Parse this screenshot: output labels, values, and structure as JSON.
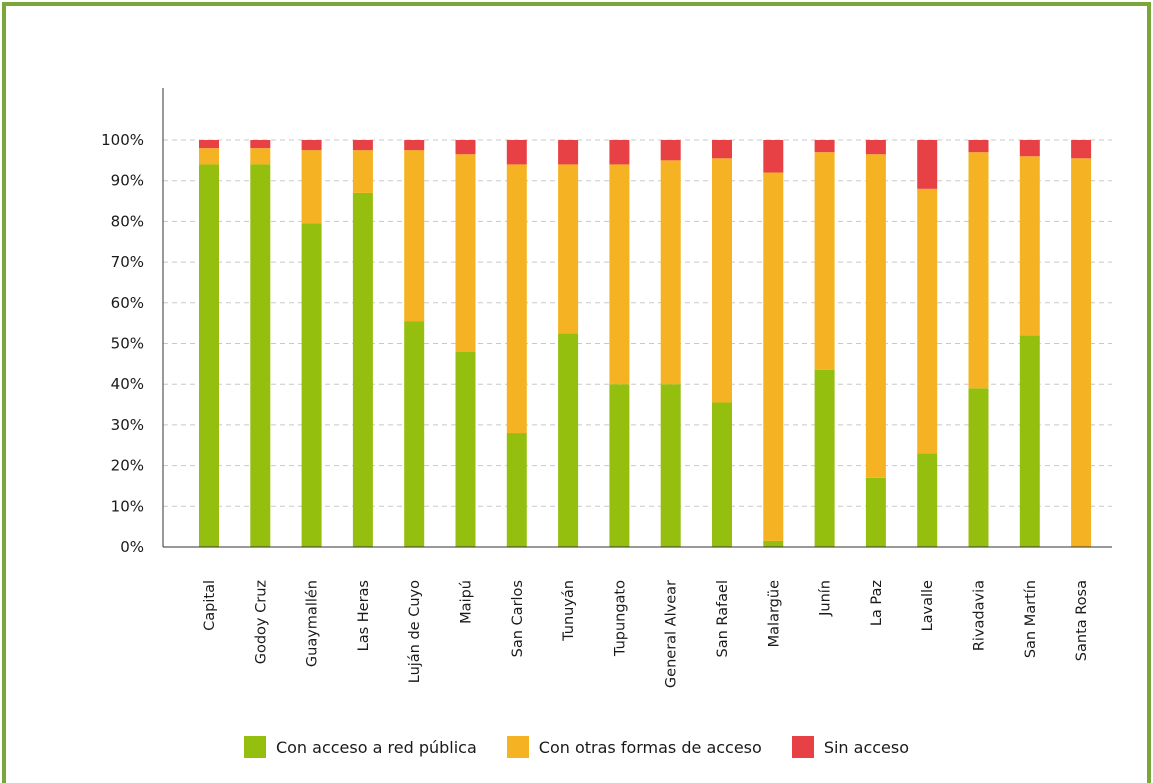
{
  "colors": {
    "frame": "#7ba63a",
    "grid": "#c8c8c8",
    "axis": "#333333",
    "public": "#95bf0e",
    "other": "#f5b323",
    "none": "#e84145"
  },
  "chart_data": {
    "type": "bar",
    "stacked": true,
    "percent": true,
    "ylim": [
      0,
      100
    ],
    "yticks": [
      "0%",
      "10%",
      "20%",
      "30%",
      "40%",
      "50%",
      "60%",
      "70%",
      "80%",
      "90%",
      "100%"
    ],
    "grid": true,
    "legend_position": "bottom",
    "categories": [
      "Capital",
      "Godoy Cruz",
      "Guaymallén",
      "Las Heras",
      "Luján de Cuyo",
      "Maipú",
      "San Carlos",
      "Tunuyán",
      "Tupungato",
      "General Alvear",
      "San Rafael",
      "Malargüe",
      "Junín",
      "La Paz",
      "Lavalle",
      "Rivadavia",
      "San Martín",
      "Santa Rosa"
    ],
    "series": [
      {
        "key": "public",
        "name": "Con acceso a red pública",
        "color": "#95bf0e",
        "values": [
          94,
          94,
          79.5,
          87,
          55.5,
          48,
          28,
          52.5,
          40,
          40,
          35.5,
          1.5,
          43.5,
          17,
          23,
          39,
          52,
          0
        ]
      },
      {
        "key": "other",
        "name": "Con otras formas de acceso",
        "color": "#f5b323",
        "values": [
          4,
          4,
          18,
          10.5,
          42,
          48.5,
          66,
          41.5,
          54,
          55,
          60,
          90.5,
          53.5,
          79.5,
          65,
          58,
          44,
          95.5
        ]
      },
      {
        "key": "none",
        "name": "Sin acceso",
        "color": "#e84145",
        "values": [
          2,
          2,
          2.5,
          2.5,
          2.5,
          3.5,
          6,
          6,
          6,
          5,
          4.5,
          8,
          3,
          3.5,
          12,
          3,
          4,
          4.5
        ]
      }
    ]
  }
}
